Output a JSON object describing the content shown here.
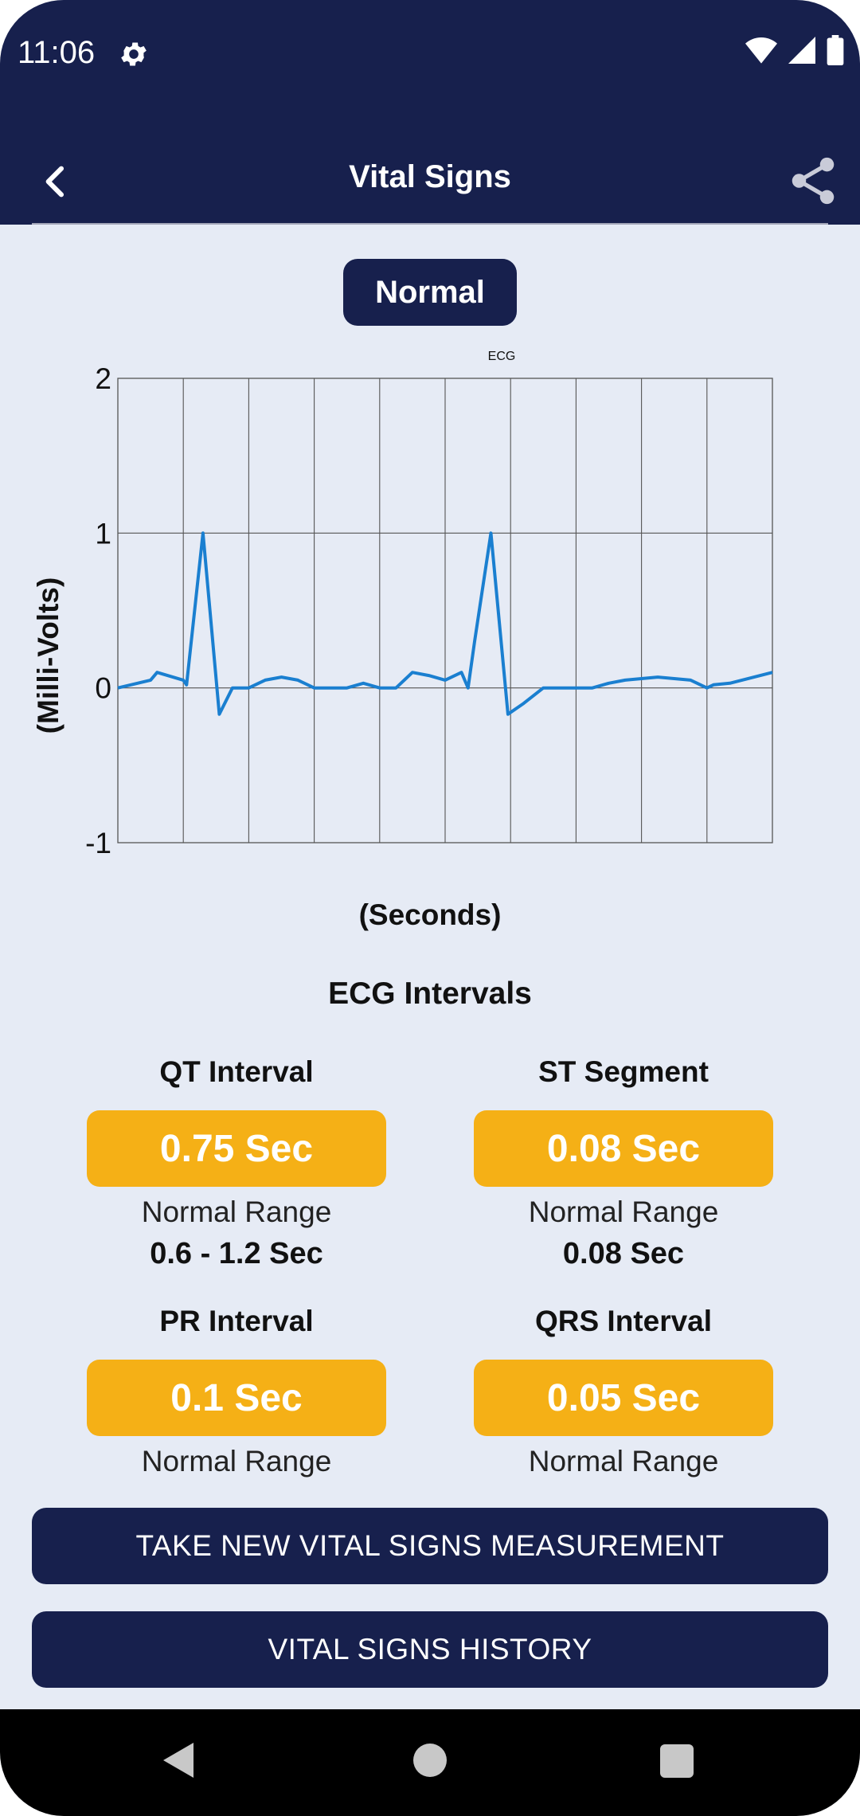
{
  "status_bar": {
    "time": "11:06"
  },
  "app_bar": {
    "title": "Vital Signs"
  },
  "status_pill": "Normal",
  "chart_data": {
    "type": "line",
    "title": "ECG",
    "xlabel": "(Seconds)",
    "ylabel": "(Milli-Volts)",
    "ylim": [
      -1,
      2
    ],
    "y_ticks": [
      -1,
      0,
      1,
      2
    ],
    "grid": true,
    "color": "#1a7fd0",
    "series": [
      {
        "x": [
          0,
          0.5,
          0.6,
          1.0,
          1.05,
          1.3,
          1.55,
          1.75,
          1.95,
          2.0,
          2.25,
          2.5,
          2.75,
          3.0,
          3.25,
          3.5,
          3.75,
          4.0,
          4.25,
          4.5,
          4.75,
          5.0,
          5.25,
          5.35,
          5.45,
          5.7,
          5.96,
          6.2,
          6.5,
          6.75,
          7.0,
          7.25,
          7.5,
          7.75,
          8.0,
          8.25,
          8.5,
          8.75,
          9.0,
          9.1,
          9.35,
          10.0
        ],
        "y": [
          0,
          0.05,
          0.1,
          0.05,
          0.02,
          1.0,
          -0.17,
          0.0,
          0.0,
          0.0,
          0.05,
          0.07,
          0.05,
          0.0,
          0.0,
          0.0,
          0.03,
          0.0,
          0.0,
          0.1,
          0.08,
          0.05,
          0.1,
          0.0,
          0.3,
          1.0,
          -0.17,
          -0.1,
          0.0,
          0.0,
          0.0,
          0.0,
          0.03,
          0.05,
          0.06,
          0.07,
          0.06,
          0.05,
          0.0,
          0.02,
          0.03,
          0.1
        ]
      }
    ]
  },
  "intervals": {
    "title": "ECG Intervals",
    "items": [
      {
        "name": "QT Interval",
        "value": "0.75 Sec",
        "range_label": "Normal Range",
        "range_value": "0.6 - 1.2 Sec"
      },
      {
        "name": "ST Segment",
        "value": "0.08 Sec",
        "range_label": "Normal Range",
        "range_value": "0.08 Sec"
      },
      {
        "name": "PR Interval",
        "value": "0.1 Sec",
        "range_label": "Normal Range",
        "range_value": ""
      },
      {
        "name": "QRS Interval",
        "value": "0.05 Sec",
        "range_label": "Normal Range",
        "range_value": ""
      }
    ]
  },
  "buttons": {
    "take_new": "TAKE NEW VITAL SIGNS MEASUREMENT",
    "history": "VITAL SIGNS HISTORY"
  },
  "colors": {
    "primary": "#17204d",
    "accent": "#f5b016",
    "background": "#e6ebf5",
    "ecg_line": "#1a7fd0"
  }
}
